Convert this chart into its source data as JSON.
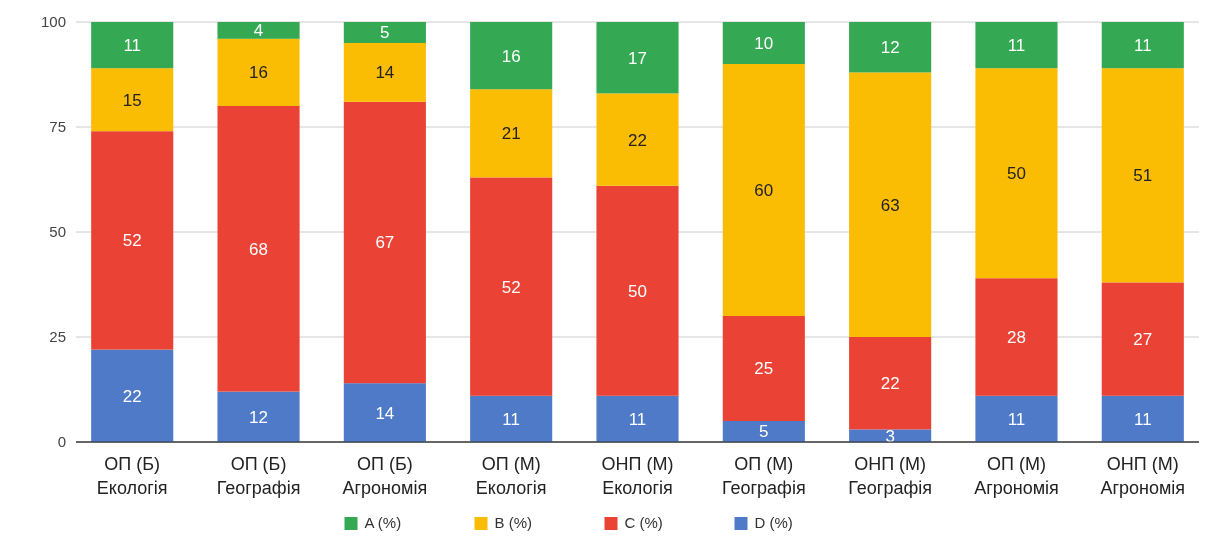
{
  "chart_data": {
    "type": "bar",
    "stacked": true,
    "categories": [
      "ОП (Б)\nЕкологія",
      "ОП (Б)\nГеографія",
      "ОП (Б)\nАгрономія",
      "ОП (М)\nЕкологія",
      "ОНП (М)\nЕкологія",
      "ОП (М)\nГеографія",
      "ОНП (М)\nГеографія",
      "ОП (М)\nАгрономія",
      "ОНП (М)\nАгрономія"
    ],
    "series": [
      {
        "name": "D (%)",
        "color": "#4e7ac7",
        "values": [
          22,
          12,
          14,
          11,
          11,
          5,
          3,
          11,
          11
        ]
      },
      {
        "name": "C (%)",
        "color": "#ea4335",
        "values": [
          52,
          68,
          67,
          52,
          50,
          25,
          22,
          28,
          27
        ]
      },
      {
        "name": "B (%)",
        "color": "#fbbc04",
        "values": [
          15,
          16,
          14,
          21,
          22,
          60,
          63,
          50,
          51
        ]
      },
      {
        "name": "A (%)",
        "color": "#34a853",
        "values": [
          11,
          4,
          5,
          16,
          17,
          10,
          12,
          11,
          11
        ]
      }
    ],
    "ylim": [
      0,
      100
    ],
    "yticks": [
      0,
      25,
      50,
      75,
      100
    ],
    "grid": "y",
    "legend": "bottom",
    "data_labels": true
  }
}
